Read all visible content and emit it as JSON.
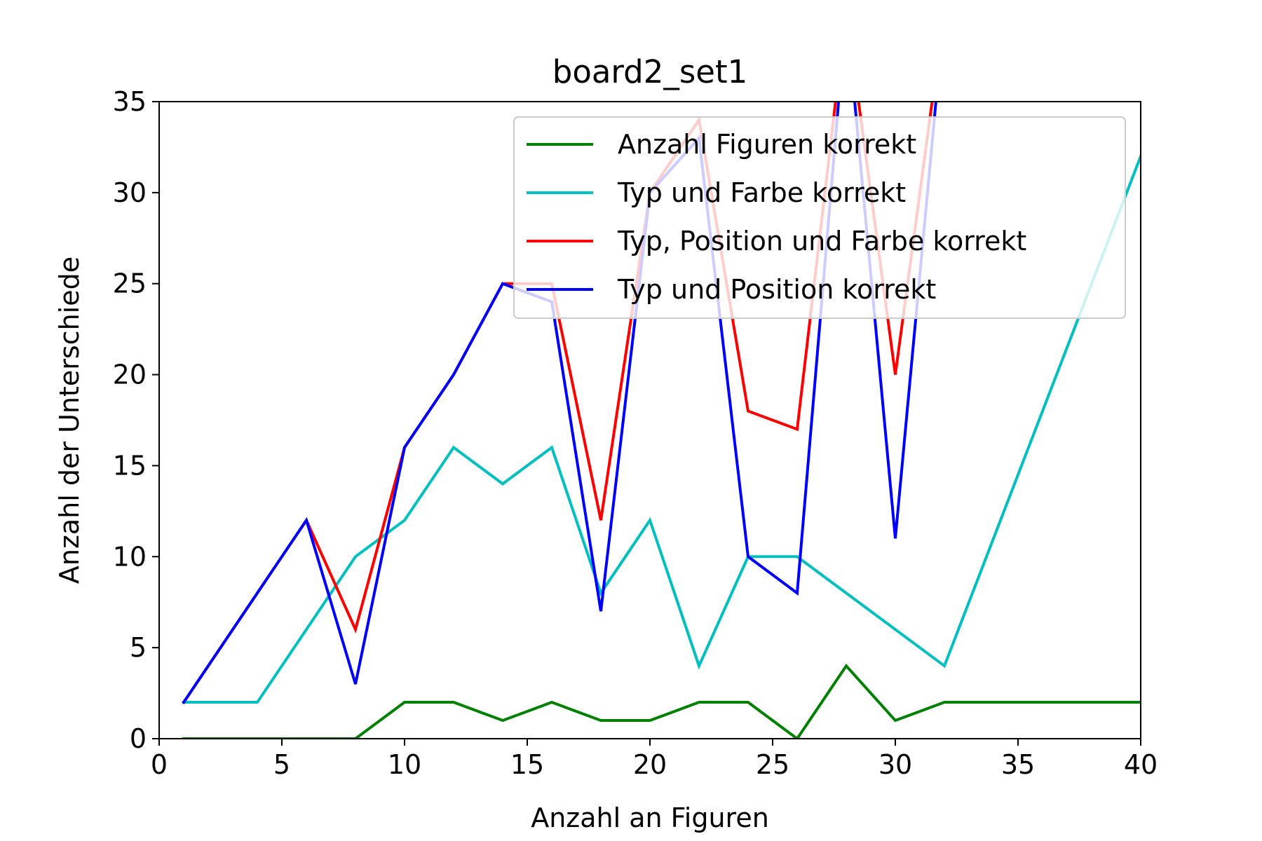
{
  "chart_data": {
    "type": "line",
    "title": "board2_set1",
    "xlabel": "Anzahl an Figuren",
    "ylabel": "Anzahl der Unterschiede",
    "xlim": [
      0,
      40
    ],
    "ylim": [
      0,
      35
    ],
    "xticks": [
      0,
      5,
      10,
      15,
      20,
      25,
      30,
      35,
      40
    ],
    "yticks": [
      0,
      5,
      10,
      15,
      20,
      25,
      30,
      35
    ],
    "grid": false,
    "legend_position": "upper right",
    "series": [
      {
        "name": "Anzahl Figuren korrekt",
        "color": "#008000",
        "x": [
          1,
          4,
          6,
          8,
          10,
          12,
          14,
          16,
          18,
          20,
          22,
          24,
          26,
          28,
          30,
          32,
          40
        ],
        "y": [
          0,
          0,
          0,
          0,
          2,
          2,
          1,
          2,
          1,
          1,
          2,
          2,
          0,
          4,
          1,
          2,
          2
        ]
      },
      {
        "name": "Typ und Farbe korrekt",
        "color": "#00bfbf",
        "x": [
          1,
          4,
          6,
          8,
          10,
          12,
          14,
          16,
          18,
          20,
          22,
          24,
          26,
          28,
          30,
          32,
          40
        ],
        "y": [
          2,
          2,
          6,
          10,
          12,
          16,
          14,
          16,
          8,
          12,
          4,
          10,
          10,
          8,
          6,
          4,
          32
        ]
      },
      {
        "name": "Typ, Position und Farbe korrekt",
        "color": "#ff0000",
        "x": [
          1,
          4,
          6,
          8,
          10,
          12,
          14,
          16,
          18,
          20,
          22,
          24,
          26,
          28,
          30,
          32
        ],
        "y": [
          2,
          8,
          12,
          6,
          16,
          20,
          25,
          25,
          12,
          30,
          34,
          18,
          17,
          40,
          20,
          40
        ]
      },
      {
        "name": "Typ und Position korrekt",
        "color": "#0000ff",
        "x": [
          1,
          4,
          6,
          8,
          10,
          12,
          14,
          16,
          18,
          20,
          22,
          24,
          26,
          28,
          30,
          32
        ],
        "y": [
          2,
          8,
          12,
          3,
          16,
          20,
          25,
          24,
          7,
          30,
          33,
          10,
          8,
          40,
          11,
          40
        ]
      }
    ]
  }
}
